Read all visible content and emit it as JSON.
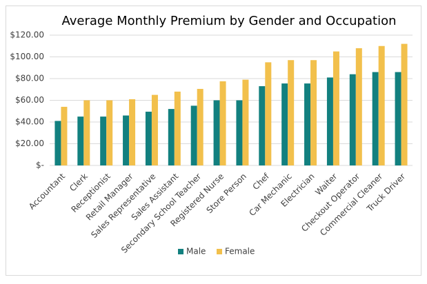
{
  "chart_data": {
    "type": "bar",
    "title": "Average Monthly Premium by Gender and Occupation",
    "categories": [
      "Accountant",
      "Clerk",
      "Receptionist",
      "Retail Manager",
      "Sales Representative",
      "Sales Assistant",
      "Secondary School Teacher",
      "Registered Nurse",
      "Store Person",
      "Chef",
      "Car Mechanic",
      "Electrician",
      "Waiter",
      "Checkout Operator",
      "Commercial Cleaner",
      "Truck Driver"
    ],
    "series": [
      {
        "name": "Male",
        "color": "#12807f",
        "values": [
          41,
          45,
          45,
          46,
          49.5,
          52,
          55,
          60,
          60,
          73,
          75.5,
          75.5,
          81,
          84,
          86,
          86
        ]
      },
      {
        "name": "Female",
        "color": "#f2c04c",
        "values": [
          54,
          60,
          60,
          61,
          65,
          68,
          70.5,
          77.5,
          79,
          95,
          97,
          97,
          105,
          108,
          110,
          112
        ]
      }
    ],
    "ylim": [
      0,
      120
    ],
    "yticks": [
      {
        "value": 0,
        "label": "$-"
      },
      {
        "value": 20,
        "label": "$20.00"
      },
      {
        "value": 40,
        "label": "$40.00"
      },
      {
        "value": 60,
        "label": "$60.00"
      },
      {
        "value": 80,
        "label": "$80.00"
      },
      {
        "value": 100,
        "label": "$100.00"
      },
      {
        "value": 120,
        "label": "$120.00"
      }
    ],
    "grid": true,
    "legend": "bottom"
  }
}
